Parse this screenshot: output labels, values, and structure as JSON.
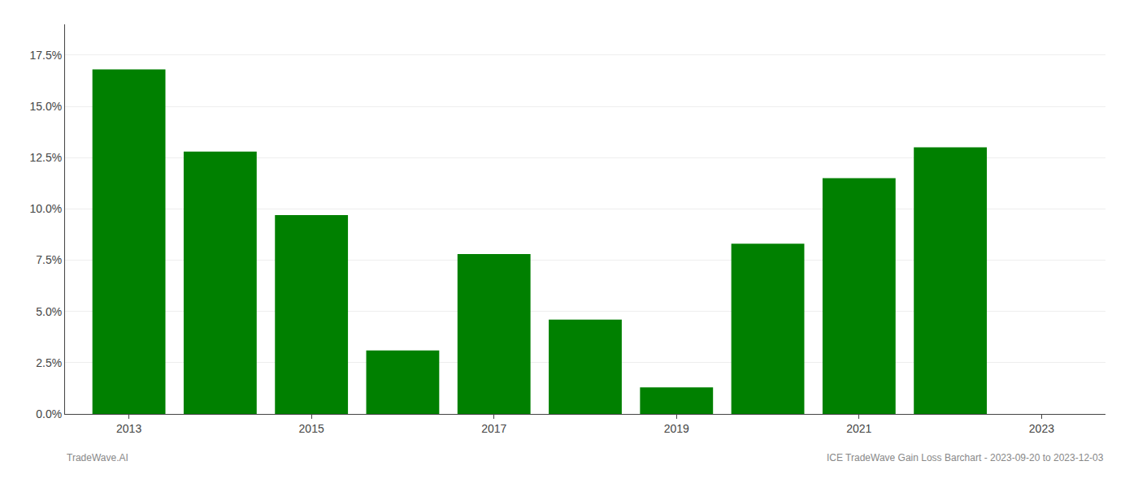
{
  "chart_data": {
    "type": "bar",
    "x": [
      2013,
      2014,
      2015,
      2016,
      2017,
      2018,
      2019,
      2020,
      2021,
      2022,
      2023
    ],
    "values": [
      0.168,
      0.128,
      0.097,
      0.031,
      0.078,
      0.046,
      0.013,
      0.083,
      0.115,
      0.13,
      0.0
    ],
    "color": "#008000",
    "xlim": [
      2012.3,
      2023.7
    ],
    "xticks": [
      2013,
      2015,
      2017,
      2019,
      2021,
      2023
    ],
    "ylim": [
      0,
      0.19
    ],
    "yticks": [
      {
        "value": 0.0,
        "label": "0.0%"
      },
      {
        "value": 0.025,
        "label": "2.5%"
      },
      {
        "value": 0.05,
        "label": "5.0%"
      },
      {
        "value": 0.075,
        "label": "7.5%"
      },
      {
        "value": 0.1,
        "label": "10.0%"
      },
      {
        "value": 0.125,
        "label": "12.5%"
      },
      {
        "value": 0.15,
        "label": "15.0%"
      },
      {
        "value": 0.175,
        "label": "17.5%"
      }
    ],
    "grid": true,
    "annotations": [
      "TradeWave.AI",
      "ICE TradeWave Gain Loss Barchart - 2023-09-20 to 2023-12-03"
    ]
  }
}
